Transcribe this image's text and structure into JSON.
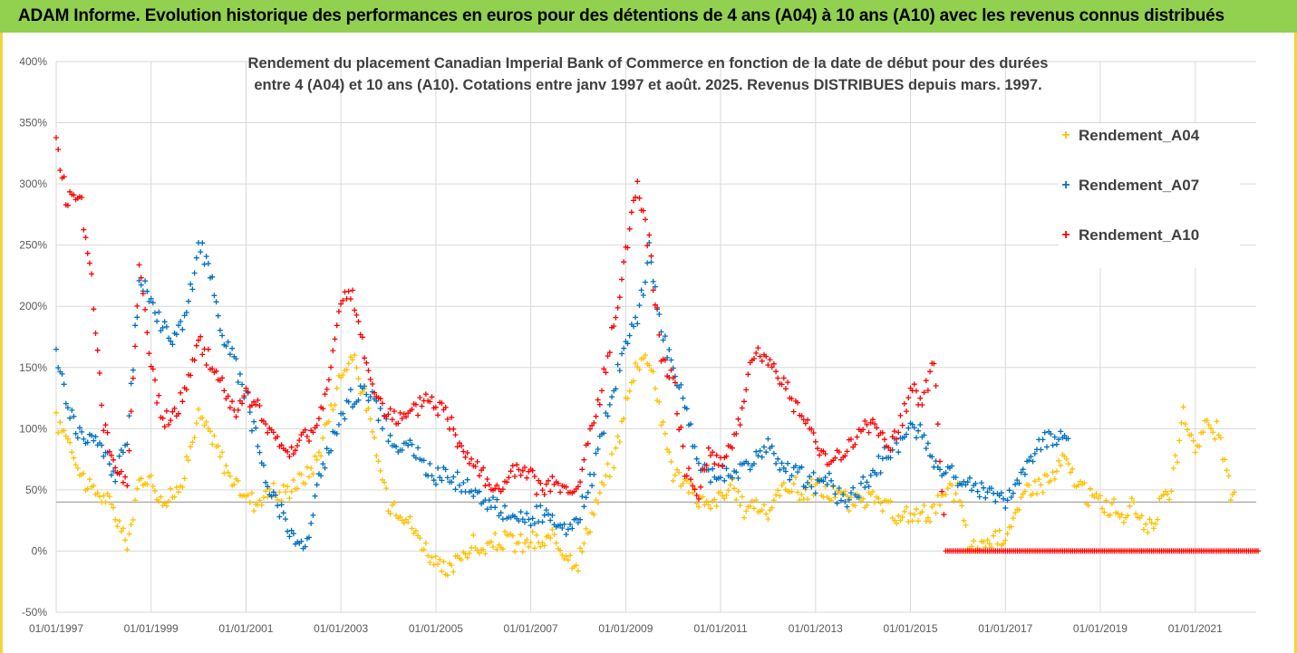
{
  "banner": {
    "title": "ADAM Informe. Evolution historique des performances en euros pour des détentions de 4 ans (A04) à 10 ans (A10) avec les revenus connus distribués"
  },
  "colors": {
    "banner_bg": "#92d050",
    "frame": "#f5d33a",
    "A04": "#ffc000",
    "A07": "#0070c0",
    "A10": "#ff0000"
  },
  "chart_data": {
    "type": "scatter",
    "title": "Rendement du placement Canadian Imperial Bank of Commerce en fonction de la date de début pour des durées entre 4 (A04) et 10 ans (A10). Cotations entre janv 1997 et août. 2025. Revenus DISTRIBUES depuis mars. 1997.",
    "title_lines": [
      "Rendement du placement Canadian Imperial Bank of Commerce en fonction de la date de début pour des durées",
      "entre 4 (A04) et 10 ans (A10). Cotations entre janv 1997 et août. 2025. Revenus DISTRIBUES depuis mars. 1997."
    ],
    "xlabel": "",
    "ylabel": "",
    "x_range": [
      "1997-01-01",
      "2022-04-15"
    ],
    "ylim": [
      -0.5,
      4.0
    ],
    "y_ticks": [
      -0.5,
      0,
      0.5,
      1.0,
      1.5,
      2.0,
      2.5,
      3.0,
      3.5,
      4.0
    ],
    "y_tick_labels": [
      "-50%",
      "0%",
      "50%",
      "100%",
      "150%",
      "200%",
      "250%",
      "300%",
      "350%",
      "400%"
    ],
    "x_tick_labels": [
      "01/01/1997",
      "01/01/1999",
      "01/01/2001",
      "01/01/2003",
      "01/01/2005",
      "01/01/2007",
      "01/01/2009",
      "01/01/2011",
      "01/01/2013",
      "01/01/2015",
      "01/01/2017",
      "01/01/2019",
      "01/01/2021"
    ],
    "grid": true,
    "reference_line": 0.4,
    "legend_position": "right",
    "series": [
      {
        "name": "Rendement_A04",
        "color": "#ffc000",
        "x": [
          "1997-01-01",
          "1997-04-01",
          "1997-07-01",
          "1997-10-01",
          "1998-01-01",
          "1998-04-01",
          "1998-07-01",
          "1998-10-01",
          "1999-01-01",
          "1999-04-01",
          "1999-07-01",
          "1999-10-01",
          "2000-01-01",
          "2000-04-01",
          "2000-07-01",
          "2000-10-01",
          "2001-01-01",
          "2001-04-01",
          "2001-07-01",
          "2001-10-01",
          "2002-01-01",
          "2002-04-01",
          "2002-07-01",
          "2002-10-01",
          "2003-01-01",
          "2003-04-01",
          "2003-07-01",
          "2003-10-01",
          "2004-01-01",
          "2004-04-01",
          "2004-07-01",
          "2004-10-01",
          "2005-01-01",
          "2005-04-01",
          "2005-07-01",
          "2005-10-01",
          "2006-01-01",
          "2006-04-01",
          "2006-07-01",
          "2006-10-01",
          "2007-01-01",
          "2007-04-01",
          "2007-07-01",
          "2007-10-01",
          "2008-01-01",
          "2008-04-01",
          "2008-07-01",
          "2008-10-01",
          "2009-01-01",
          "2009-04-01",
          "2009-07-01",
          "2009-10-01",
          "2010-01-01",
          "2010-04-01",
          "2010-07-01",
          "2010-10-01",
          "2011-01-01",
          "2011-04-01",
          "2011-07-01",
          "2011-10-01",
          "2012-01-01",
          "2012-04-01",
          "2012-07-01",
          "2012-10-01",
          "2013-01-01",
          "2013-04-01",
          "2013-07-01",
          "2013-10-01",
          "2014-01-01",
          "2014-04-01",
          "2014-07-01",
          "2014-10-01",
          "2015-01-01",
          "2015-04-01",
          "2015-07-01",
          "2015-10-01",
          "2016-01-01",
          "2016-04-01",
          "2016-07-01",
          "2016-10-01",
          "2017-01-01",
          "2017-04-01",
          "2017-07-01",
          "2017-10-01",
          "2018-01-01",
          "2018-04-01",
          "2018-07-01",
          "2018-10-01",
          "2019-01-01",
          "2019-04-01",
          "2019-07-01",
          "2019-10-01",
          "2020-01-01",
          "2020-04-01",
          "2020-07-01",
          "2020-10-01",
          "2021-01-01",
          "2021-04-01",
          "2021-07-01",
          "2021-10-01"
        ],
        "y": [
          1.05,
          0.95,
          0.65,
          0.5,
          0.45,
          0.3,
          0.05,
          0.55,
          0.6,
          0.4,
          0.45,
          0.7,
          1.1,
          0.95,
          0.75,
          0.55,
          0.45,
          0.4,
          0.5,
          0.45,
          0.55,
          0.6,
          0.75,
          1.1,
          1.45,
          1.6,
          1.25,
          0.8,
          0.4,
          0.35,
          0.2,
          0.05,
          -0.1,
          -0.2,
          -0.05,
          0.05,
          0.0,
          0.05,
          0.1,
          0.05,
          0.08,
          0.05,
          0.1,
          0.0,
          -0.1,
          0.25,
          0.5,
          0.75,
          1.2,
          1.55,
          1.6,
          1.1,
          0.65,
          0.55,
          0.45,
          0.35,
          0.45,
          0.5,
          0.35,
          0.4,
          0.3,
          0.5,
          0.55,
          0.45,
          0.55,
          0.45,
          0.5,
          0.35,
          0.45,
          0.4,
          0.35,
          0.25,
          0.3,
          0.3,
          0.35,
          0.45,
          0.5,
          0.0,
          0.05,
          0.1,
          0.15,
          0.3,
          0.55,
          0.55,
          0.6,
          0.75,
          0.55,
          0.45,
          0.4,
          0.35,
          0.3,
          0.35,
          0.2,
          0.35,
          0.5,
          1.1,
          0.85,
          1.05,
          0.95,
          0.45
        ]
      },
      {
        "name": "Rendement_A07",
        "color": "#0070c0",
        "x": [
          "1997-01-01",
          "1997-04-01",
          "1997-07-01",
          "1997-10-01",
          "1998-01-01",
          "1998-04-01",
          "1998-07-01",
          "1998-10-01",
          "1999-01-01",
          "1999-04-01",
          "1999-07-01",
          "1999-10-01",
          "2000-01-01",
          "2000-04-01",
          "2000-07-01",
          "2000-10-01",
          "2001-01-01",
          "2001-04-01",
          "2001-07-01",
          "2001-10-01",
          "2002-01-01",
          "2002-04-01",
          "2002-07-01",
          "2002-10-01",
          "2003-01-01",
          "2003-04-01",
          "2003-07-01",
          "2003-10-01",
          "2004-01-01",
          "2004-04-01",
          "2004-07-01",
          "2004-10-01",
          "2005-01-01",
          "2005-04-01",
          "2005-07-01",
          "2005-10-01",
          "2006-01-01",
          "2006-04-01",
          "2006-07-01",
          "2006-10-01",
          "2007-01-01",
          "2007-04-01",
          "2007-07-01",
          "2007-10-01",
          "2008-01-01",
          "2008-04-01",
          "2008-07-01",
          "2008-10-01",
          "2009-01-01",
          "2009-04-01",
          "2009-07-01",
          "2009-10-01",
          "2010-01-01",
          "2010-04-01",
          "2010-07-01",
          "2010-10-01",
          "2011-01-01",
          "2011-04-01",
          "2011-07-01",
          "2011-10-01",
          "2012-01-01",
          "2012-04-01",
          "2012-07-01",
          "2012-10-01",
          "2013-01-01",
          "2013-04-01",
          "2013-07-01",
          "2013-10-01",
          "2014-01-01",
          "2014-04-01",
          "2014-07-01",
          "2014-10-01",
          "2015-01-01",
          "2015-04-01",
          "2015-07-01",
          "2015-10-01",
          "2016-01-01",
          "2016-04-01",
          "2016-07-01",
          "2016-10-01",
          "2017-01-01",
          "2017-04-01",
          "2017-07-01",
          "2017-10-01",
          "2018-01-01",
          "2018-04-01"
        ],
        "y": [
          1.6,
          1.2,
          0.95,
          0.9,
          0.85,
          0.6,
          0.9,
          2.2,
          2.05,
          1.85,
          1.75,
          1.9,
          2.55,
          2.25,
          1.8,
          1.55,
          1.3,
          0.85,
          0.5,
          0.35,
          0.1,
          0.0,
          0.5,
          0.85,
          1.1,
          1.25,
          1.35,
          1.2,
          0.95,
          0.85,
          0.85,
          0.7,
          0.6,
          0.65,
          0.55,
          0.5,
          0.45,
          0.35,
          0.3,
          0.3,
          0.25,
          0.3,
          0.2,
          0.15,
          0.25,
          0.55,
          0.95,
          1.35,
          1.7,
          1.9,
          2.45,
          1.85,
          1.45,
          1.2,
          0.75,
          0.6,
          0.65,
          0.6,
          0.7,
          0.75,
          0.85,
          0.7,
          0.65,
          0.6,
          0.55,
          0.6,
          0.45,
          0.4,
          0.55,
          0.65,
          0.8,
          0.85,
          1.05,
          0.95,
          0.75,
          0.65,
          0.6,
          0.55,
          0.5,
          0.45,
          0.4,
          0.6,
          0.7,
          0.9,
          0.95,
          0.95
        ]
      },
      {
        "name": "Rendement_A10",
        "color": "#ff0000",
        "x": [
          "1997-01-01",
          "1997-04-01",
          "1997-07-01",
          "1997-10-01",
          "1998-01-01",
          "1998-04-01",
          "1998-07-01",
          "1998-10-01",
          "1999-01-01",
          "1999-04-01",
          "1999-07-01",
          "1999-10-01",
          "2000-01-01",
          "2000-04-01",
          "2000-07-01",
          "2000-10-01",
          "2001-01-01",
          "2001-04-01",
          "2001-07-01",
          "2001-10-01",
          "2002-01-01",
          "2002-04-01",
          "2002-07-01",
          "2002-10-01",
          "2003-01-01",
          "2003-04-01",
          "2003-07-01",
          "2003-10-01",
          "2004-01-01",
          "2004-04-01",
          "2004-07-01",
          "2004-10-01",
          "2005-01-01",
          "2005-04-01",
          "2005-07-01",
          "2005-10-01",
          "2006-01-01",
          "2006-04-01",
          "2006-07-01",
          "2006-10-01",
          "2007-01-01",
          "2007-04-01",
          "2007-07-01",
          "2007-10-01",
          "2008-01-01",
          "2008-04-01",
          "2008-07-01",
          "2008-10-01",
          "2009-01-01",
          "2009-04-01",
          "2009-07-01",
          "2009-10-01",
          "2010-01-01",
          "2010-04-01",
          "2010-07-01",
          "2010-10-01",
          "2011-01-01",
          "2011-04-01",
          "2011-07-01",
          "2011-10-01",
          "2012-01-01",
          "2012-04-01",
          "2012-07-01",
          "2012-10-01",
          "2013-01-01",
          "2013-04-01",
          "2013-07-01",
          "2013-10-01",
          "2014-01-01",
          "2014-04-01",
          "2014-07-01",
          "2014-10-01",
          "2015-01-01",
          "2015-04-01",
          "2015-07-01",
          "2015-10-01",
          "2016-01-01",
          "2017-01-01",
          "2018-01-01",
          "2019-01-01",
          "2020-01-01",
          "2021-01-01",
          "2022-04-01"
        ],
        "y": [
          3.3,
          2.85,
          2.95,
          2.2,
          1.0,
          0.7,
          0.55,
          2.35,
          1.5,
          1.05,
          1.1,
          1.35,
          1.7,
          1.55,
          1.35,
          1.15,
          1.25,
          1.2,
          0.95,
          0.85,
          0.8,
          0.95,
          1.0,
          1.45,
          2.0,
          2.1,
          1.6,
          1.25,
          1.15,
          1.05,
          1.1,
          1.25,
          1.2,
          1.1,
          0.9,
          0.75,
          0.65,
          0.45,
          0.6,
          0.65,
          0.6,
          0.5,
          0.55,
          0.45,
          0.5,
          0.95,
          1.3,
          1.85,
          2.45,
          3.0,
          2.5,
          1.6,
          1.45,
          0.7,
          0.45,
          0.8,
          0.75,
          0.85,
          1.25,
          1.65,
          1.55,
          1.45,
          1.25,
          1.05,
          0.9,
          0.75,
          0.8,
          0.85,
          1.0,
          1.05,
          0.85,
          0.95,
          1.35,
          1.25,
          1.55,
          0.0,
          0.0,
          0.0,
          0.0,
          0.0,
          0.0,
          0.0,
          0.0
        ]
      }
    ]
  }
}
